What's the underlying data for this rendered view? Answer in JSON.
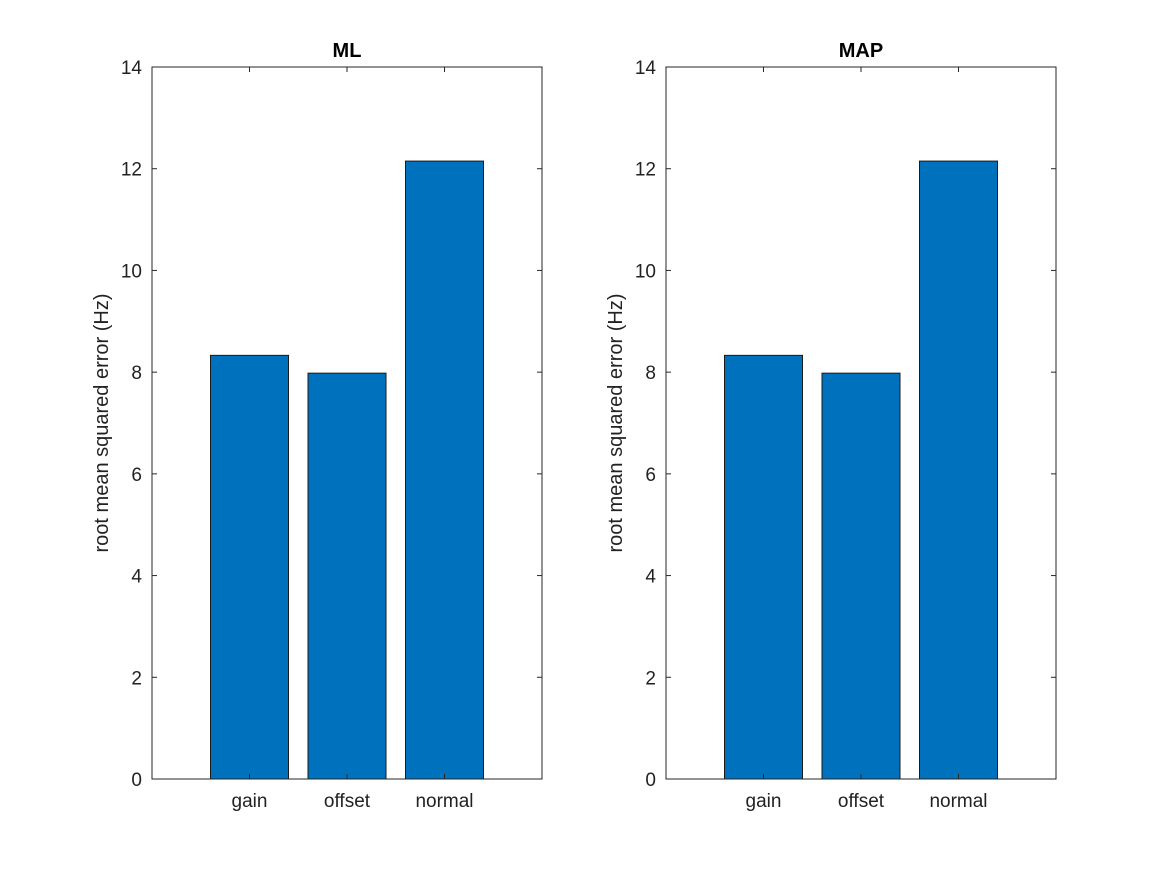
{
  "chart_data": [
    {
      "type": "bar",
      "title": "ML",
      "categories": [
        "gain",
        "offset",
        "normal"
      ],
      "values": [
        8.33,
        7.98,
        12.15
      ],
      "xlabel": "",
      "ylabel": "root mean squared error (Hz)",
      "ylim": [
        0,
        14
      ],
      "yticks": [
        0,
        2,
        4,
        6,
        8,
        10,
        12,
        14
      ],
      "xlim": [
        0,
        4
      ],
      "bar_color": "#0072BD",
      "grid": false
    },
    {
      "type": "bar",
      "title": "MAP",
      "categories": [
        "gain",
        "offset",
        "normal"
      ],
      "values": [
        8.33,
        7.98,
        12.15
      ],
      "xlabel": "",
      "ylabel": "root mean squared error (Hz)",
      "ylim": [
        0,
        14
      ],
      "yticks": [
        0,
        2,
        4,
        6,
        8,
        10,
        12,
        14
      ],
      "xlim": [
        0,
        4
      ],
      "bar_color": "#0072BD",
      "grid": false
    }
  ]
}
